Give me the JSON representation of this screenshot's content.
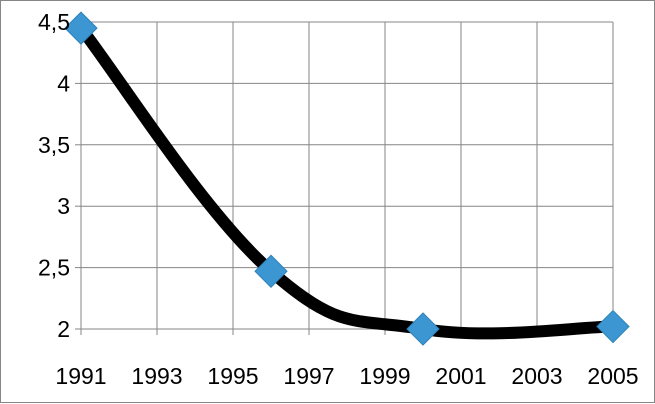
{
  "chart_data": {
    "type": "line",
    "title": "",
    "xlabel": "",
    "ylabel": "",
    "x": [
      1991,
      1996,
      2000,
      2005
    ],
    "series": [
      {
        "values": [
          4.45,
          2.47,
          2.0,
          2.02
        ]
      }
    ],
    "xlim": [
      1991,
      2005
    ],
    "ylim": [
      2,
      4.5
    ],
    "x_ticks": [
      "1991",
      "1993",
      "1995",
      "1997",
      "1999",
      "2001",
      "2003",
      "2005"
    ],
    "y_ticks": [
      "2",
      "2,5",
      "3",
      "3,5",
      "4",
      "4,5"
    ],
    "grid": true,
    "smooth": true,
    "colors": {
      "line": "#000000",
      "marker": "#3b96d2",
      "grid": "#868686"
    }
  }
}
